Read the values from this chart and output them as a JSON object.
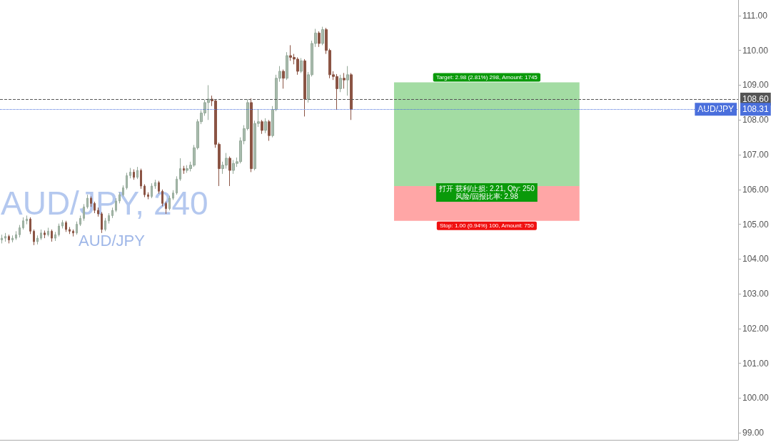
{
  "chart_data": {
    "type": "candlestick",
    "tick_labels": "y",
    "categories": [
      null,
      null,
      null,
      null,
      null,
      null,
      null,
      null,
      null,
      null,
      null,
      null,
      null,
      null,
      null,
      null,
      null,
      null,
      null,
      null,
      null,
      null,
      null,
      null,
      null,
      null,
      null,
      null,
      null,
      null,
      null,
      null,
      null,
      null,
      null,
      null,
      null,
      null,
      null,
      null,
      null,
      null,
      null,
      null,
      null,
      null,
      null,
      null,
      null,
      null,
      null,
      null,
      null,
      null,
      null,
      null,
      null,
      null,
      null,
      null,
      null,
      null,
      null,
      null,
      null,
      null,
      null,
      null,
      null,
      null,
      null,
      null,
      null,
      null,
      null,
      null,
      null,
      null,
      null,
      null,
      null,
      null,
      null,
      null,
      null,
      null,
      null,
      null,
      null,
      null,
      null,
      null,
      null,
      null,
      null,
      null,
      null,
      null,
      null,
      null,
      null,
      null,
      null,
      null,
      null,
      null,
      null,
      null,
      null,
      null,
      null,
      null,
      null,
      null,
      null,
      null,
      null,
      null,
      null,
      null,
      null,
      null,
      null,
      null,
      null,
      null,
      null,
      null,
      null,
      null,
      null,
      null,
      null,
      null,
      null,
      null,
      null,
      null,
      null,
      null,
      null,
      null,
      null,
      null,
      null,
      null,
      null,
      null,
      null,
      null,
      null,
      null,
      null,
      null,
      null,
      null,
      null,
      null,
      null,
      null,
      null,
      null,
      null,
      null,
      null,
      null,
      null,
      null,
      null,
      null,
      null,
      null,
      null,
      null,
      null,
      null,
      null,
      null,
      null,
      null,
      null,
      null,
      null,
      null,
      null,
      null,
      null,
      null,
      null,
      null,
      null,
      null,
      null,
      null,
      null,
      null,
      null,
      null,
      null,
      null,
      null,
      null,
      null,
      null,
      null,
      null,
      null
    ],
    "ohlc": [
      [
        104.55,
        104.7,
        104.45,
        104.6
      ],
      [
        104.6,
        104.75,
        104.5,
        104.65
      ],
      [
        104.65,
        104.7,
        104.45,
        104.55
      ],
      [
        104.55,
        104.68,
        104.48,
        104.6
      ],
      [
        104.6,
        104.8,
        104.55,
        104.7
      ],
      [
        104.7,
        104.98,
        104.62,
        104.9
      ],
      [
        104.9,
        105.2,
        104.85,
        105.1
      ],
      [
        105.1,
        105.25,
        105.0,
        105.15
      ],
      [
        105.15,
        105.2,
        104.72,
        104.8
      ],
      [
        104.8,
        104.85,
        104.4,
        104.5
      ],
      [
        104.5,
        104.68,
        104.42,
        104.6
      ],
      [
        104.6,
        104.85,
        104.55,
        104.75
      ],
      [
        104.75,
        104.82,
        104.6,
        104.7
      ],
      [
        104.7,
        104.9,
        104.65,
        104.8
      ],
      [
        104.8,
        104.85,
        104.5,
        104.6
      ],
      [
        104.6,
        104.78,
        104.52,
        104.7
      ],
      [
        104.7,
        105.02,
        104.65,
        104.95
      ],
      [
        104.95,
        105.12,
        104.88,
        105.05
      ],
      [
        105.05,
        105.1,
        104.78,
        104.85
      ],
      [
        104.85,
        104.92,
        104.72,
        104.8
      ],
      [
        104.8,
        104.85,
        104.65,
        104.75
      ],
      [
        104.75,
        105.08,
        104.7,
        105.0
      ],
      [
        105.0,
        105.25,
        104.95,
        105.17
      ],
      [
        105.17,
        105.58,
        105.1,
        105.5
      ],
      [
        105.5,
        105.85,
        105.45,
        105.75
      ],
      [
        105.75,
        105.8,
        105.5,
        105.6
      ],
      [
        105.6,
        105.65,
        105.32,
        105.4
      ],
      [
        105.4,
        105.48,
        105.22,
        105.3
      ],
      [
        105.3,
        105.35,
        104.75,
        104.85
      ],
      [
        104.85,
        105.18,
        104.8,
        105.1
      ],
      [
        105.1,
        105.32,
        105.02,
        105.25
      ],
      [
        105.25,
        105.48,
        105.18,
        105.4
      ],
      [
        105.4,
        105.75,
        105.35,
        105.67
      ],
      [
        105.67,
        105.92,
        105.6,
        105.85
      ],
      [
        105.85,
        106.12,
        105.8,
        106.05
      ],
      [
        106.05,
        106.48,
        106.0,
        106.4
      ],
      [
        106.4,
        106.62,
        106.32,
        106.5
      ],
      [
        106.5,
        106.58,
        106.28,
        106.35
      ],
      [
        106.35,
        106.65,
        106.3,
        106.55
      ],
      [
        106.55,
        106.6,
        106.02,
        106.1
      ],
      [
        106.1,
        106.15,
        105.78,
        105.85
      ],
      [
        105.85,
        105.92,
        105.72,
        105.8
      ],
      [
        105.8,
        106.18,
        105.75,
        106.1
      ],
      [
        106.1,
        106.28,
        106.02,
        106.2
      ],
      [
        106.2,
        106.25,
        105.88,
        105.95
      ],
      [
        105.95,
        106.0,
        105.52,
        105.6
      ],
      [
        105.6,
        105.65,
        105.3,
        105.45
      ],
      [
        105.45,
        105.82,
        105.4,
        105.75
      ],
      [
        105.75,
        105.98,
        105.7,
        105.9
      ],
      [
        105.9,
        106.38,
        105.85,
        106.3
      ],
      [
        106.3,
        106.9,
        106.25,
        106.6
      ],
      [
        106.6,
        106.68,
        106.45,
        106.55
      ],
      [
        106.55,
        106.7,
        106.48,
        106.6
      ],
      [
        106.6,
        106.8,
        106.52,
        106.7
      ],
      [
        106.7,
        107.28,
        106.65,
        107.2
      ],
      [
        107.2,
        108.02,
        107.15,
        107.95
      ],
      [
        107.95,
        108.28,
        107.88,
        108.2
      ],
      [
        108.2,
        108.58,
        108.12,
        108.5
      ],
      [
        108.5,
        109.0,
        108.0,
        108.6
      ],
      [
        108.6,
        108.7,
        108.4,
        108.55
      ],
      [
        108.55,
        108.6,
        107.2,
        107.3
      ],
      [
        107.3,
        107.35,
        106.1,
        106.6
      ],
      [
        106.6,
        106.8,
        106.45,
        106.7
      ],
      [
        106.7,
        107.05,
        106.6,
        106.9
      ],
      [
        106.9,
        106.95,
        106.1,
        106.55
      ],
      [
        106.55,
        106.85,
        106.45,
        106.75
      ],
      [
        106.75,
        106.92,
        106.65,
        106.8
      ],
      [
        106.8,
        107.5,
        106.75,
        107.4
      ],
      [
        107.4,
        107.85,
        107.3,
        107.75
      ],
      [
        107.75,
        108.6,
        107.7,
        108.5
      ],
      [
        108.5,
        108.62,
        106.5,
        106.6
      ],
      [
        106.6,
        107.98,
        106.55,
        107.9
      ],
      [
        107.9,
        108.3,
        107.8,
        107.95
      ],
      [
        107.95,
        108.0,
        107.6,
        107.7
      ],
      [
        107.7,
        108.05,
        107.62,
        107.95
      ],
      [
        107.95,
        108.0,
        107.4,
        107.55
      ],
      [
        107.55,
        108.4,
        107.5,
        108.3
      ],
      [
        108.3,
        109.3,
        108.25,
        109.2
      ],
      [
        109.2,
        109.55,
        109.1,
        109.4
      ],
      [
        109.4,
        109.45,
        108.9,
        109.2
      ],
      [
        109.2,
        109.95,
        109.15,
        109.85
      ],
      [
        109.85,
        110.15,
        109.7,
        109.8
      ],
      [
        109.8,
        109.9,
        109.6,
        109.75
      ],
      [
        109.75,
        109.8,
        109.3,
        109.4
      ],
      [
        109.4,
        109.78,
        109.35,
        109.7
      ],
      [
        109.7,
        109.75,
        108.1,
        108.6
      ],
      [
        108.6,
        109.38,
        108.5,
        109.3
      ],
      [
        109.3,
        110.28,
        109.25,
        110.2
      ],
      [
        110.2,
        110.62,
        110.1,
        110.5
      ],
      [
        110.5,
        110.55,
        110.1,
        110.2
      ],
      [
        110.2,
        110.68,
        110.15,
        110.6
      ],
      [
        110.6,
        110.65,
        109.9,
        110.0
      ],
      [
        110.0,
        110.05,
        109.2,
        109.3
      ],
      [
        109.3,
        109.4,
        109.15,
        109.25
      ],
      [
        109.25,
        109.32,
        108.3,
        108.9
      ],
      [
        108.9,
        109.3,
        108.8,
        109.2
      ],
      [
        109.2,
        109.35,
        108.9,
        109.15
      ],
      [
        109.15,
        109.55,
        108.7,
        109.3
      ],
      [
        109.3,
        109.35,
        108.0,
        108.31
      ],
      null,
      null,
      null,
      null,
      null,
      null,
      null,
      null,
      null,
      null,
      null,
      null,
      null,
      null,
      null,
      null,
      null,
      null,
      null,
      null,
      null,
      null,
      null,
      null,
      null,
      null,
      null,
      null,
      null,
      null,
      null,
      null,
      null,
      null,
      null,
      null,
      null,
      null,
      null,
      null,
      null,
      null,
      null,
      null,
      null,
      null,
      null,
      null,
      null,
      null,
      null,
      null,
      null,
      null,
      null,
      null,
      null,
      null,
      null,
      null,
      null,
      null,
      null,
      null,
      null,
      null,
      null,
      null,
      null,
      null,
      null,
      null,
      null,
      null,
      null,
      null,
      null,
      null,
      null,
      null,
      null,
      null,
      null,
      null,
      null,
      null,
      null,
      null,
      null,
      null,
      null,
      null,
      null,
      null,
      null,
      null,
      null,
      null,
      null,
      null,
      null,
      null,
      null,
      null,
      null,
      null,
      null,
      null
    ],
    "ylim": [
      98.8,
      111.45
    ],
    "yticks": [
      {
        "value": 99,
        "label": "99.00"
      },
      {
        "value": 100,
        "label": "100.00"
      },
      {
        "value": 101,
        "label": "101.00"
      },
      {
        "value": 102,
        "label": "102.00"
      },
      {
        "value": 103,
        "label": "103.00"
      },
      {
        "value": 104,
        "label": "104.00"
      },
      {
        "value": 105,
        "label": "105.00"
      },
      {
        "value": 106,
        "label": "106.00"
      },
      {
        "value": 107,
        "label": "107.00"
      },
      {
        "value": 108,
        "label": "108.00"
      },
      {
        "value": 109,
        "label": "109.00"
      },
      {
        "value": 110,
        "label": "110.00"
      },
      {
        "value": 111,
        "label": "111.00"
      }
    ],
    "bands": [
      {
        "axis": "y",
        "from": 106.1,
        "to": 109.08,
        "label": "Target: 2.98 (2.81%) 298, Amount: 1745",
        "color": "#a3dca3"
      },
      {
        "axis": "y",
        "from": 105.1,
        "to": 106.1,
        "label": "Stop: 1.00 (0.94%) 100, Amount: 750",
        "color": "#ffa6a6"
      }
    ],
    "ref_lines": [
      {
        "axis": "y",
        "value": 108.6,
        "label": "108.60",
        "color": "#555555",
        "line_style": "dashed"
      },
      {
        "axis": "y",
        "value": 108.31,
        "label": "108.31",
        "color": "#4a6fdc",
        "line_style": "dotted"
      }
    ],
    "annotations": [
      "AUD/JPY, 240",
      "AUD/JPY",
      {
        "text": "打开 获利/止损: 2.21, Qty: 250\n风险/回报比率: 2.98",
        "y": 106.1
      },
      {
        "text": "AUD/JPY",
        "y": 108.31
      }
    ]
  }
}
